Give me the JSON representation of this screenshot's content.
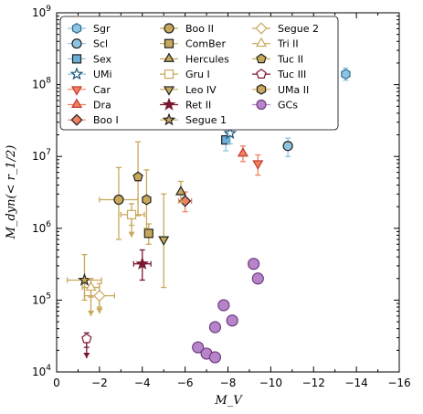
{
  "chart_data": {
    "type": "scatter",
    "title": "",
    "xlabel": "M_V",
    "ylabel": "M_dyn(< r_1/2)",
    "xlim": [
      0,
      -16
    ],
    "ylim": [
      10000,
      1000000000
    ],
    "yscale": "log",
    "xticks": [
      {
        "value": 0,
        "label": "0"
      },
      {
        "value": -2,
        "label": "−2"
      },
      {
        "value": -4,
        "label": "−4"
      },
      {
        "value": -6,
        "label": "−6"
      },
      {
        "value": -8,
        "label": "−8"
      },
      {
        "value": -10,
        "label": "−10"
      },
      {
        "value": -12,
        "label": "−12"
      },
      {
        "value": -14,
        "label": "−14"
      },
      {
        "value": -16,
        "label": "−16"
      }
    ],
    "yticks": [
      {
        "exp": "4",
        "value": 10000
      },
      {
        "exp": "5",
        "value": 100000
      },
      {
        "exp": "6",
        "value": 1000000
      },
      {
        "exp": "7",
        "value": 10000000
      },
      {
        "exp": "8",
        "value": 100000000
      },
      {
        "exp": "9",
        "value": 1000000000
      }
    ],
    "grid": false,
    "legend_position": "top-left",
    "series": [
      {
        "name": "Sgr",
        "marker": "hexagon",
        "fill": "#8fc4e0",
        "edge": "#2a6b96",
        "err": "#8fc4e0",
        "points": [
          {
            "x": -13.5,
            "y": 140000000,
            "ylo": 115000000,
            "yhi": 170000000
          }
        ]
      },
      {
        "name": "Scl",
        "marker": "circle",
        "fill": "#8fc4e0",
        "edge": "#222222",
        "err": "#8fc4e0",
        "points": [
          {
            "x": -10.8,
            "y": 14000000,
            "ylo": 10000000,
            "yhi": 18000000
          }
        ]
      },
      {
        "name": "Sex",
        "marker": "square",
        "fill": "#6aaed6",
        "edge": "#222222",
        "err": "#8fc4e0",
        "points": [
          {
            "x": -7.9,
            "y": 17000000,
            "ylo": 12000000,
            "yhi": 24000000
          }
        ]
      },
      {
        "name": "UMi",
        "marker": "star",
        "fill": "#ffffff",
        "edge": "#1a5276",
        "err": "#8fc4e0",
        "points": [
          {
            "x": -8.1,
            "y": 21000000,
            "ylo": 15000000,
            "yhi": 28000000
          }
        ]
      },
      {
        "name": "Car",
        "marker": "tri-down",
        "fill": "#f08060",
        "edge": "#c0392b",
        "err": "#f08060",
        "points": [
          {
            "x": -9.4,
            "y": 8000000,
            "ylo": 5500000,
            "yhi": 10500000
          }
        ]
      },
      {
        "name": "Dra",
        "marker": "tri-up",
        "fill": "#f08060",
        "edge": "#c0392b",
        "err": "#f08060",
        "points": [
          {
            "x": -8.7,
            "y": 11000000,
            "ylo": 8500000,
            "yhi": 14000000
          }
        ]
      },
      {
        "name": "Boo I",
        "marker": "diamond",
        "fill": "#f08060",
        "edge": "#222222",
        "err": "#f08060",
        "points": [
          {
            "x": -6.0,
            "y": 2400000,
            "ylo": 1700000,
            "yhi": 3200000,
            "xlo": -5.7,
            "xhi": -6.3
          }
        ]
      },
      {
        "name": "Boo II",
        "marker": "circle",
        "fill": "#c8a85a",
        "edge": "#222222",
        "err": "#c8a85a",
        "points": [
          {
            "x": -2.9,
            "y": 2500000,
            "ylo": 700000,
            "yhi": 7000000,
            "xlo": -2.0,
            "xhi": -3.8
          }
        ]
      },
      {
        "name": "ComBer",
        "marker": "square",
        "fill": "#c8a85a",
        "edge": "#222222",
        "err": "#c8a85a",
        "points": [
          {
            "x": -4.3,
            "y": 850000,
            "ylo": 600000,
            "yhi": 1150000
          }
        ]
      },
      {
        "name": "Hercules",
        "marker": "tri-up",
        "fill": "#c8a85a",
        "edge": "#222222",
        "err": "#c8a85a",
        "points": [
          {
            "x": -5.8,
            "y": 3200000,
            "ylo": 2300000,
            "yhi": 4500000
          }
        ]
      },
      {
        "name": "Gru I",
        "marker": "square",
        "fill": "#ffffff",
        "edge": "#c8a85a",
        "err": "#c8a85a",
        "points": [
          {
            "x": -3.5,
            "y": 1550000,
            "ylo": 1100000,
            "yhi": 2200000,
            "xlo": -3.0,
            "xhi": -4.1,
            "upper_limit": true,
            "arrow_to": 750000
          }
        ]
      },
      {
        "name": "Leo IV",
        "marker": "tri-down",
        "fill": "#c8a85a",
        "edge": "#222222",
        "err": "#c8a85a",
        "points": [
          {
            "x": -5.0,
            "y": 700000,
            "ylo": 150000,
            "yhi": 3000000
          }
        ]
      },
      {
        "name": "Ret II",
        "marker": "star",
        "fill": "#7b1830",
        "edge": "#7b1830",
        "err": "#7b1830",
        "points": [
          {
            "x": -4.0,
            "y": 320000,
            "ylo": 190000,
            "yhi": 500000,
            "xlo": -3.6,
            "xhi": -4.4
          }
        ]
      },
      {
        "name": "Segue 1",
        "marker": "star",
        "fill": "#c8a85a",
        "edge": "#222222",
        "err": "#c8a85a",
        "points": [
          {
            "x": -1.3,
            "y": 190000,
            "ylo": 100000,
            "yhi": 430000,
            "xlo": -0.5,
            "xhi": -2.1
          }
        ]
      },
      {
        "name": "Segue 2",
        "marker": "diamond",
        "fill": "#ffffff",
        "edge": "#c8a85a",
        "err": "#c8a85a",
        "points": [
          {
            "x": -2.0,
            "y": 115000,
            "ylo": 80000,
            "yhi": 170000,
            "xlo": -1.3,
            "xhi": -2.7,
            "upper_limit": true,
            "arrow_to": 65000
          }
        ]
      },
      {
        "name": "Tri II",
        "marker": "tri-up",
        "fill": "#ffffff",
        "edge": "#c8a85a",
        "err": "#c8a85a",
        "points": [
          {
            "x": -1.6,
            "y": 150000,
            "ylo": 110000,
            "yhi": 200000,
            "xlo": -1.2,
            "xhi": -2.0,
            "upper_limit": true,
            "arrow_to": 60000
          }
        ]
      },
      {
        "name": "Tuc II",
        "marker": "pentagon",
        "fill": "#c8a85a",
        "edge": "#222222",
        "err": "#c8a85a",
        "points": [
          {
            "x": -3.8,
            "y": 5200000,
            "ylo": 1500000,
            "yhi": 16000000
          }
        ]
      },
      {
        "name": "Tuc III",
        "marker": "pentagon",
        "fill": "#ffffff",
        "edge": "#7b1830",
        "err": "#7b1830",
        "points": [
          {
            "x": -1.4,
            "y": 29000,
            "ylo": 22000,
            "yhi": 35000,
            "upper_limit": true,
            "arrow_to": 15500
          }
        ]
      },
      {
        "name": "UMa II",
        "marker": "hexagon",
        "fill": "#c8a85a",
        "edge": "#222222",
        "err": "#c8a85a",
        "points": [
          {
            "x": -4.2,
            "y": 2500000,
            "ylo": 1000000,
            "yhi": 6500000
          }
        ]
      },
      {
        "name": "GCs",
        "marker": "circle",
        "fill": "#b784c9",
        "edge": "#6d3c80",
        "err": "#b784c9",
        "points": [
          {
            "x": -6.6,
            "y": 22000
          },
          {
            "x": -7.0,
            "y": 18000
          },
          {
            "x": -7.4,
            "y": 16000
          },
          {
            "x": -7.4,
            "y": 42000
          },
          {
            "x": -7.8,
            "y": 85000
          },
          {
            "x": -8.2,
            "y": 52000
          },
          {
            "x": -9.2,
            "y": 320000
          },
          {
            "x": -9.4,
            "y": 200000
          }
        ]
      }
    ]
  }
}
